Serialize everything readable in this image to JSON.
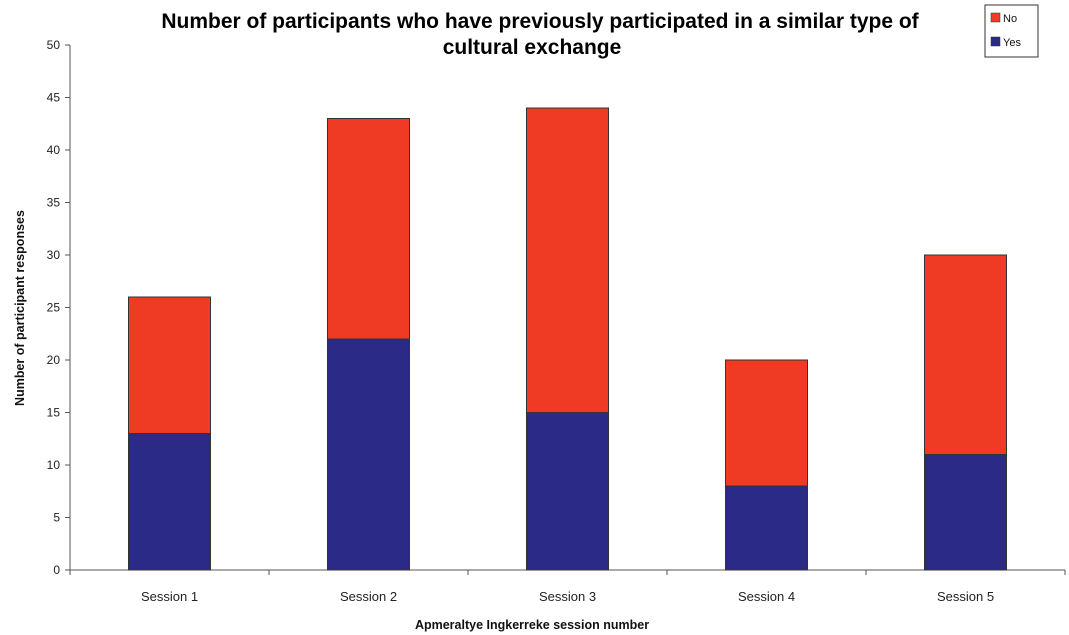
{
  "chart_data": {
    "type": "bar",
    "stacked": true,
    "title_lines": [
      "Number of participants who have previously participated in a similar type of",
      "cultural exchange"
    ],
    "xlabel": "Apmeraltye Ingkerreke session number",
    "ylabel": "Number of participant responses",
    "categories": [
      "Session 1",
      "Session 2",
      "Session 3",
      "Session 4",
      "Session 5"
    ],
    "series": [
      {
        "name": "Yes",
        "color": "#2b2a86",
        "values": [
          13,
          22,
          15,
          8,
          11
        ]
      },
      {
        "name": "No",
        "color": "#ef3b24",
        "values": [
          13,
          21,
          29,
          12,
          19
        ]
      }
    ],
    "ylim": [
      0,
      50
    ],
    "yticks": [
      0,
      5,
      10,
      15,
      20,
      25,
      30,
      35,
      40,
      45,
      50
    ],
    "grid": false,
    "legend": {
      "position": "top-right",
      "order": [
        "No",
        "Yes"
      ]
    }
  }
}
